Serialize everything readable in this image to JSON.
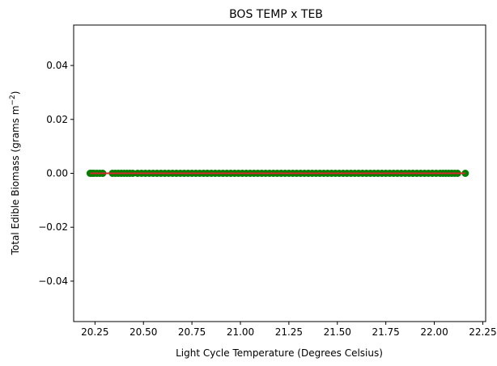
{
  "chart_data": {
    "type": "scatter",
    "title": "BOS TEMP x TEB",
    "xlabel": "Light Cycle Temperature (Degrees Celsius)",
    "ylabel_main": "Total Edible Biomass (grams m",
    "ylabel_sup": "−2",
    "ylabel_end": ")",
    "xlim": [
      20.14,
      22.265
    ],
    "ylim": [
      -0.055,
      0.055
    ],
    "x_ticks": [
      20.25,
      20.5,
      20.75,
      21.0,
      21.25,
      21.5,
      21.75,
      22.0,
      22.25
    ],
    "x_tick_labels": [
      "20.25",
      "20.50",
      "20.75",
      "21.00",
      "21.25",
      "21.50",
      "21.75",
      "22.00",
      "22.25"
    ],
    "y_ticks": [
      -0.04,
      -0.02,
      0.0,
      0.02,
      0.04
    ],
    "y_tick_labels": [
      "−0.04",
      "−0.02",
      "0.00",
      "0.02",
      "0.04"
    ],
    "grid": false,
    "series": [
      {
        "kind": "scatter",
        "color": "#008000",
        "x": [
          20.225,
          20.235,
          20.245,
          20.26,
          20.275,
          20.29,
          20.34,
          20.355,
          20.37,
          20.385,
          20.4,
          20.415,
          20.43,
          20.445,
          20.47,
          20.49,
          20.51,
          20.53,
          20.55,
          20.57,
          20.59,
          20.61,
          20.63,
          20.65,
          20.67,
          20.69,
          20.71,
          20.73,
          20.75,
          20.77,
          20.79,
          20.81,
          20.83,
          20.85,
          20.87,
          20.89,
          20.91,
          20.93,
          20.95,
          20.97,
          20.99,
          21.01,
          21.03,
          21.05,
          21.07,
          21.09,
          21.11,
          21.13,
          21.15,
          21.17,
          21.19,
          21.21,
          21.23,
          21.25,
          21.27,
          21.29,
          21.31,
          21.33,
          21.35,
          21.37,
          21.39,
          21.41,
          21.43,
          21.45,
          21.47,
          21.49,
          21.51,
          21.53,
          21.55,
          21.57,
          21.59,
          21.61,
          21.63,
          21.65,
          21.67,
          21.69,
          21.71,
          21.73,
          21.75,
          21.77,
          21.79,
          21.81,
          21.83,
          21.85,
          21.87,
          21.89,
          21.91,
          21.93,
          21.95,
          21.97,
          21.99,
          22.01,
          22.03,
          22.045,
          22.06,
          22.075,
          22.09,
          22.105,
          22.12,
          22.16
        ],
        "y": [
          0,
          0,
          0,
          0,
          0,
          0,
          0,
          0,
          0,
          0,
          0,
          0,
          0,
          0,
          0,
          0,
          0,
          0,
          0,
          0,
          0,
          0,
          0,
          0,
          0,
          0,
          0,
          0,
          0,
          0,
          0,
          0,
          0,
          0,
          0,
          0,
          0,
          0,
          0,
          0,
          0,
          0,
          0,
          0,
          0,
          0,
          0,
          0,
          0,
          0,
          0,
          0,
          0,
          0,
          0,
          0,
          0,
          0,
          0,
          0,
          0,
          0,
          0,
          0,
          0,
          0,
          0,
          0,
          0,
          0,
          0,
          0,
          0,
          0,
          0,
          0,
          0,
          0,
          0,
          0,
          0,
          0,
          0,
          0,
          0,
          0,
          0,
          0,
          0,
          0,
          0,
          0,
          0,
          0,
          0,
          0,
          0,
          0,
          0,
          0
        ]
      },
      {
        "kind": "line",
        "color": "#d62728",
        "x": [
          20.225,
          22.16
        ],
        "y": [
          0,
          0
        ]
      }
    ]
  }
}
